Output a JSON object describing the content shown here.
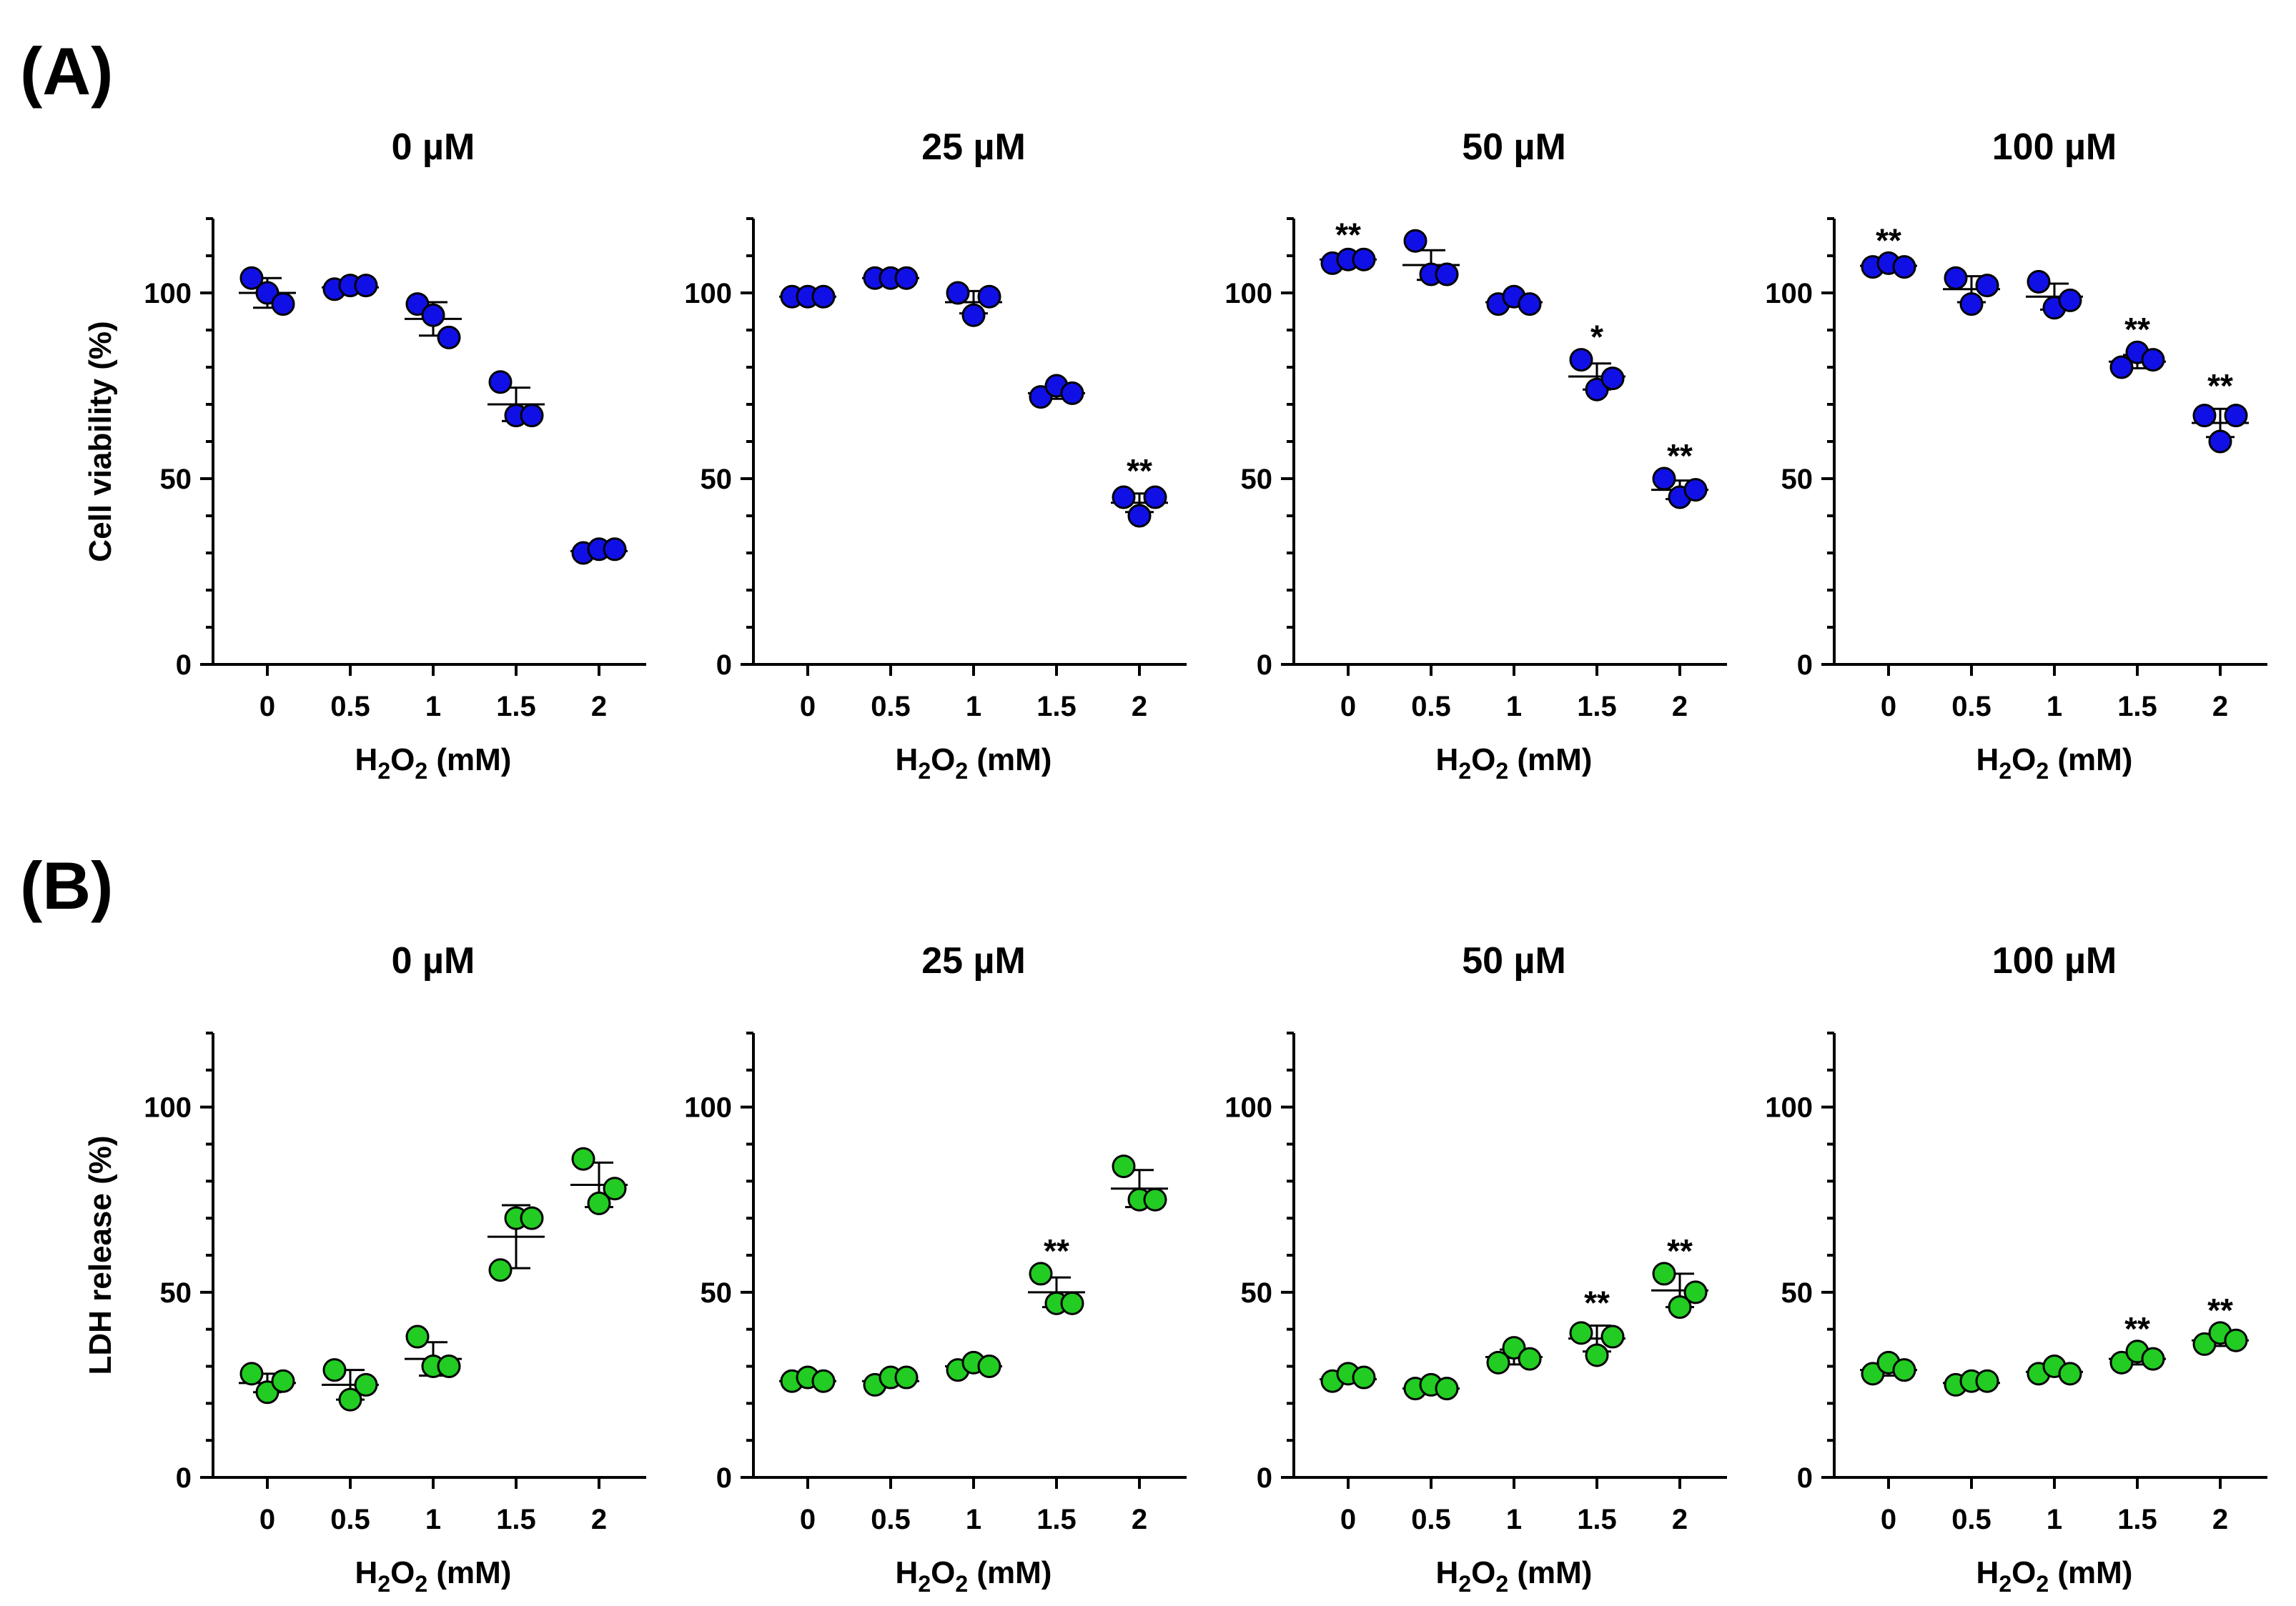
{
  "figure": {
    "panel_labels": [
      "(A)",
      "(B)"
    ]
  },
  "colors": {
    "viability_marker": "#1010e6",
    "ldh_marker": "#22cc22",
    "axis": "#000000"
  },
  "chart_data": [
    {
      "type": "scatter",
      "panel": "A",
      "title": "0 µM",
      "xlabel_main": "H",
      "xlabel_sub1": "2",
      "xlabel_mid": "O",
      "xlabel_sub2": "2",
      "xlabel_tail": " (mM)",
      "ylabel": "Cell viability (%)",
      "ylim": [
        0,
        120
      ],
      "yticks": [
        "0",
        "50",
        "100"
      ],
      "categories": [
        "0",
        "0.5",
        "1",
        "1.5",
        "2"
      ],
      "points": [
        [
          104,
          100,
          97
        ],
        [
          101,
          102,
          102
        ],
        [
          97,
          94,
          88
        ],
        [
          76,
          67,
          67
        ],
        [
          30,
          31,
          31
        ]
      ],
      "mean": [
        100,
        101.5,
        93,
        70,
        30.5
      ],
      "sd": [
        4,
        1,
        4.5,
        4.5,
        0.5
      ],
      "significance": [
        "",
        "",
        "",
        "",
        ""
      ]
    },
    {
      "type": "scatter",
      "panel": "A",
      "title": "25 µM",
      "xlabel_main": "H",
      "xlabel_sub1": "2",
      "xlabel_mid": "O",
      "xlabel_sub2": "2",
      "xlabel_tail": " (mM)",
      "ylabel": "",
      "ylim": [
        0,
        120
      ],
      "yticks": [
        "0",
        "50",
        "100"
      ],
      "categories": [
        "0",
        "0.5",
        "1",
        "1.5",
        "2"
      ],
      "points": [
        [
          99,
          99,
          99
        ],
        [
          104,
          104,
          104
        ],
        [
          100,
          94,
          99
        ],
        [
          72,
          75,
          73
        ],
        [
          45,
          40,
          45
        ]
      ],
      "mean": [
        99,
        104,
        97.5,
        73,
        43.5
      ],
      "sd": [
        0.5,
        0.5,
        3,
        1.5,
        2.5
      ],
      "significance": [
        "",
        "",
        "",
        "",
        "**"
      ]
    },
    {
      "type": "scatter",
      "panel": "A",
      "title": "50 µM",
      "xlabel_main": "H",
      "xlabel_sub1": "2",
      "xlabel_mid": "O",
      "xlabel_sub2": "2",
      "xlabel_tail": " (mM)",
      "ylabel": "",
      "ylim": [
        0,
        120
      ],
      "yticks": [
        "0",
        "50",
        "100"
      ],
      "categories": [
        "0",
        "0.5",
        "1",
        "1.5",
        "2"
      ],
      "points": [
        [
          108,
          109,
          109
        ],
        [
          114,
          105,
          105
        ],
        [
          97,
          99,
          97
        ],
        [
          82,
          74,
          77
        ],
        [
          50,
          45,
          47
        ]
      ],
      "mean": [
        109,
        107.5,
        97.5,
        77.5,
        47
      ],
      "sd": [
        0.5,
        4,
        1,
        3.5,
        2.5
      ],
      "significance": [
        "**",
        "",
        "",
        "*",
        "**"
      ]
    },
    {
      "type": "scatter",
      "panel": "A",
      "title": "100 µM",
      "xlabel_main": "H",
      "xlabel_sub1": "2",
      "xlabel_mid": "O",
      "xlabel_sub2": "2",
      "xlabel_tail": " (mM)",
      "ylabel": "",
      "ylim": [
        0,
        120
      ],
      "yticks": [
        "0",
        "50",
        "100"
      ],
      "categories": [
        "0",
        "0.5",
        "1",
        "1.5",
        "2"
      ],
      "points": [
        [
          107,
          108,
          107
        ],
        [
          104,
          97,
          102
        ],
        [
          103,
          96,
          98
        ],
        [
          80,
          84,
          82
        ],
        [
          67,
          60,
          67
        ]
      ],
      "mean": [
        107.3,
        101,
        99,
        81.5,
        65
      ],
      "sd": [
        0.5,
        3.5,
        3.5,
        1.8,
        3.8
      ],
      "significance": [
        "**",
        "",
        "",
        "**",
        "**"
      ]
    },
    {
      "type": "scatter",
      "panel": "B",
      "title": "0 µM",
      "xlabel_main": "H",
      "xlabel_sub1": "2",
      "xlabel_mid": "O",
      "xlabel_sub2": "2",
      "xlabel_tail": " (mM)",
      "ylabel": "LDH release (%)",
      "ylim": [
        0,
        120
      ],
      "yticks": [
        "0",
        "50",
        "100"
      ],
      "categories": [
        "0",
        "0.5",
        "1",
        "1.5",
        "2"
      ],
      "points": [
        [
          28,
          23,
          26
        ],
        [
          29,
          21,
          25
        ],
        [
          38,
          30,
          30
        ],
        [
          56,
          70,
          70
        ],
        [
          86,
          74,
          78
        ]
      ],
      "mean": [
        25.5,
        25,
        32,
        65,
        79
      ],
      "sd": [
        2.5,
        4,
        4.5,
        8.5,
        6
      ],
      "significance": [
        "",
        "",
        "",
        "",
        ""
      ]
    },
    {
      "type": "scatter",
      "panel": "B",
      "title": "25 µM",
      "xlabel_main": "H",
      "xlabel_sub1": "2",
      "xlabel_mid": "O",
      "xlabel_sub2": "2",
      "xlabel_tail": " (mM)",
      "ylabel": "",
      "ylim": [
        0,
        120
      ],
      "yticks": [
        "0",
        "50",
        "100"
      ],
      "categories": [
        "0",
        "0.5",
        "1",
        "1.5",
        "2"
      ],
      "points": [
        [
          26,
          27,
          26
        ],
        [
          25,
          27,
          27
        ],
        [
          29,
          31,
          30
        ],
        [
          55,
          47,
          47
        ],
        [
          84,
          75,
          75
        ]
      ],
      "mean": [
        26,
        26,
        30,
        50,
        78
      ],
      "sd": [
        0.5,
        1,
        1.5,
        4,
        5
      ],
      "significance": [
        "",
        "",
        "",
        "**",
        ""
      ]
    },
    {
      "type": "scatter",
      "panel": "B",
      "title": "50 µM",
      "xlabel_main": "H",
      "xlabel_sub1": "2",
      "xlabel_mid": "O",
      "xlabel_sub2": "2",
      "xlabel_tail": " (mM)",
      "ylabel": "",
      "ylim": [
        0,
        120
      ],
      "yticks": [
        "0",
        "50",
        "100"
      ],
      "categories": [
        "0",
        "0.5",
        "1",
        "1.5",
        "2"
      ],
      "points": [
        [
          26,
          28,
          27
        ],
        [
          24,
          25,
          24
        ],
        [
          31,
          35,
          32
        ],
        [
          39,
          33,
          38
        ],
        [
          55,
          46,
          50
        ]
      ],
      "mean": [
        26.5,
        24,
        32.5,
        37.5,
        50.5
      ],
      "sd": [
        1,
        0.5,
        2,
        3.5,
        4.5
      ],
      "significance": [
        "",
        "",
        "",
        "**",
        "**"
      ]
    },
    {
      "type": "scatter",
      "panel": "B",
      "title": "100 µM",
      "xlabel_main": "H",
      "xlabel_sub1": "2",
      "xlabel_mid": "O",
      "xlabel_sub2": "2",
      "xlabel_tail": " (mM)",
      "ylabel": "",
      "ylim": [
        0,
        120
      ],
      "yticks": [
        "0",
        "50",
        "100"
      ],
      "categories": [
        "0",
        "0.5",
        "1",
        "1.5",
        "2"
      ],
      "points": [
        [
          28,
          31,
          29
        ],
        [
          25,
          26,
          26
        ],
        [
          28,
          30,
          28
        ],
        [
          31,
          34,
          32
        ],
        [
          36,
          39,
          37
        ]
      ],
      "mean": [
        29,
        25.5,
        28.5,
        32,
        37
      ],
      "sd": [
        1.5,
        0.5,
        1,
        1.5,
        1.5
      ],
      "significance": [
        "",
        "",
        "",
        "**",
        "**"
      ]
    }
  ]
}
